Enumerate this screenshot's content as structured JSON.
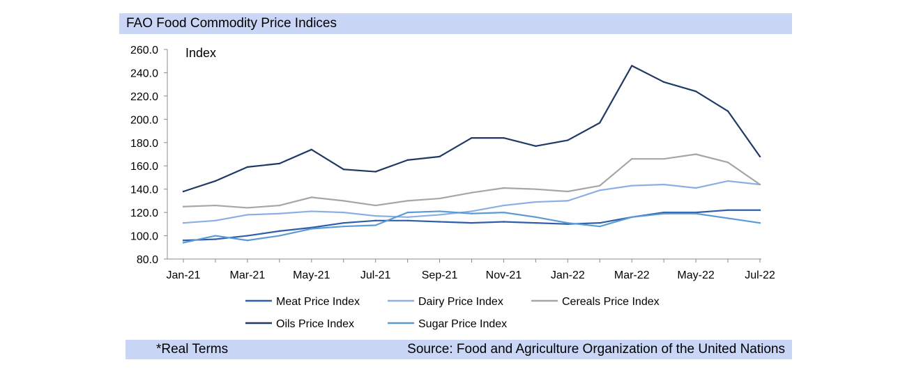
{
  "title": "FAO Food Commodity Price Indices",
  "footer": {
    "note": "*Real Terms",
    "source": "Source: Food and Agriculture Organization of the United Nations"
  },
  "chart_data": {
    "type": "line",
    "ylabel": "Index",
    "ylim": [
      80,
      260
    ],
    "yticks": [
      "80.0",
      "100.0",
      "120.0",
      "140.0",
      "160.0",
      "180.0",
      "200.0",
      "220.0",
      "240.0",
      "260.0"
    ],
    "x": [
      "Jan-21",
      "Feb-21",
      "Mar-21",
      "Apr-21",
      "May-21",
      "Jun-21",
      "Jul-21",
      "Aug-21",
      "Sep-21",
      "Oct-21",
      "Nov-21",
      "Dec-21",
      "Jan-22",
      "Feb-22",
      "Mar-22",
      "Apr-22",
      "May-22",
      "Jun-22",
      "Jul-22"
    ],
    "xtick_labels": [
      "Jan-21",
      "Mar-21",
      "May-21",
      "Jul-21",
      "Sep-21",
      "Nov-21",
      "Jan-22",
      "Mar-22",
      "May-22",
      "Jul-22"
    ],
    "legend_position": "bottom",
    "series": [
      {
        "name": "Meat Price Index",
        "color": "#2e5eaa",
        "values": [
          96,
          97,
          100,
          104,
          107,
          111,
          113,
          113,
          112,
          111,
          112,
          111,
          110,
          111,
          116,
          120,
          120,
          122,
          122
        ]
      },
      {
        "name": "Dairy Price Index",
        "color": "#8aaee6",
        "values": [
          111,
          113,
          118,
          119,
          121,
          120,
          117,
          116,
          118,
          121,
          126,
          129,
          130,
          139,
          143,
          144,
          141,
          147,
          144
        ]
      },
      {
        "name": "Cereals Price Index",
        "color": "#a6a6a6",
        "values": [
          125,
          126,
          124,
          126,
          133,
          130,
          126,
          130,
          132,
          137,
          141,
          140,
          138,
          143,
          166,
          166,
          170,
          163,
          144
        ]
      },
      {
        "name": "Oils Price Index",
        "color": "#1f3864",
        "values": [
          138,
          147,
          159,
          162,
          174,
          157,
          155,
          165,
          168,
          184,
          184,
          177,
          182,
          197,
          246,
          232,
          224,
          207,
          168
        ]
      },
      {
        "name": "Sugar Price Index",
        "color": "#5b9bd5",
        "values": [
          94,
          100,
          96,
          100,
          106,
          108,
          109,
          120,
          121,
          119,
          120,
          116,
          111,
          108,
          116,
          119,
          119,
          115,
          111
        ]
      }
    ]
  }
}
